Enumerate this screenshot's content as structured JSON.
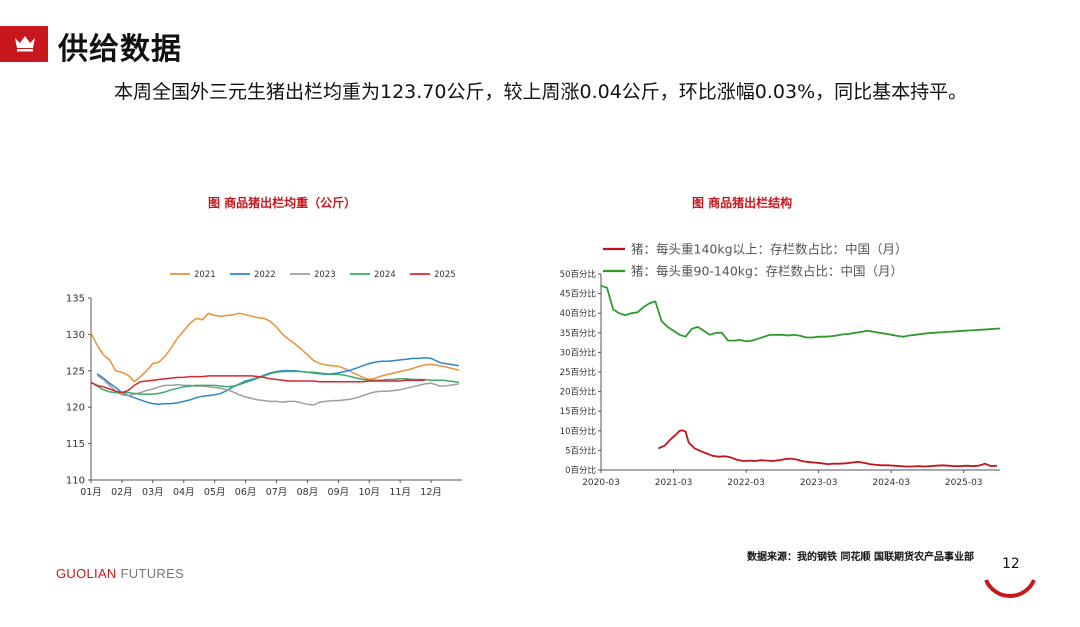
{
  "header": {
    "title": "供给数据",
    "summary": "本周全国外三元生猪出栏均重为123.70公斤，较上周涨0.04公斤，环比涨幅0.03%，同比基本持平。"
  },
  "footer": {
    "source": "数据来源：我的钢铁 同花顺 国联期货农产品事业部",
    "brand_main": "GUOLIAN",
    "brand_sub": "FUTURES",
    "page_number": "12"
  },
  "colors": {
    "accent": "#c8161d",
    "s2021": "#e8913a",
    "s2022": "#2e86c8",
    "s2023": "#9e9e9e",
    "s2024": "#3daa6a",
    "s2025": "#d9272e",
    "green": "#2e9a2e",
    "red": "#c0141c"
  },
  "chart_data": [
    {
      "type": "line",
      "title": "图 商品猪出栏均重（公斤）",
      "xlabel": "",
      "ylabel": "",
      "ylim": [
        110,
        135
      ],
      "yticks": [
        110,
        115,
        120,
        125,
        130,
        135
      ],
      "categories": [
        "01月",
        "02月",
        "03月",
        "04月",
        "05月",
        "06月",
        "07月",
        "08月",
        "09月",
        "10月",
        "11月",
        "12月"
      ],
      "legend_position": "top",
      "series": [
        {
          "name": "2021",
          "color": "#e8913a",
          "x": [
            1,
            1.2,
            1.4,
            1.6,
            1.8,
            2.0,
            2.2,
            2.4,
            2.6,
            2.8,
            3.0,
            3.2,
            3.4,
            3.6,
            3.8,
            4.0,
            4.2,
            4.4,
            4.6,
            4.8,
            5.0,
            5.2,
            5.4,
            5.6,
            5.8,
            6.0,
            6.2,
            6.4,
            6.6,
            6.8,
            7.0,
            7.2,
            7.4,
            7.6,
            7.8,
            8.0,
            8.2,
            8.4,
            8.6,
            8.8,
            9.0,
            9.2,
            9.4,
            9.6,
            9.8,
            10.0,
            10.2,
            10.4,
            10.6,
            10.8,
            11.0,
            11.2,
            11.4,
            11.6,
            11.8,
            12.0,
            12.4,
            12.9
          ],
          "values": [
            130.2,
            128.5,
            127.2,
            126.5,
            125.0,
            124.8,
            124.4,
            123.5,
            124.2,
            125.0,
            126.0,
            126.2,
            127.0,
            128.2,
            129.5,
            130.5,
            131.5,
            132.2,
            132.0,
            132.9,
            132.6,
            132.5,
            132.6,
            132.7,
            132.9,
            132.7,
            132.5,
            132.3,
            132.2,
            131.8,
            131.0,
            130.0,
            129.3,
            128.7,
            128.0,
            127.2,
            126.4,
            126.0,
            125.8,
            125.7,
            125.6,
            125.3,
            124.9,
            124.5,
            124.1,
            123.8,
            124.0,
            124.3,
            124.5,
            124.7,
            124.9,
            125.1,
            125.3,
            125.6,
            125.8,
            125.9,
            125.6,
            125.1
          ]
        },
        {
          "name": "2022",
          "color": "#2e86c8",
          "x": [
            1.2,
            1.4,
            1.6,
            1.8,
            2.0,
            2.2,
            2.4,
            2.6,
            2.8,
            3.0,
            3.2,
            3.4,
            3.6,
            3.8,
            4.0,
            4.2,
            4.4,
            4.6,
            4.8,
            5.0,
            5.2,
            5.4,
            5.6,
            5.8,
            6.0,
            6.2,
            6.4,
            6.6,
            6.8,
            7.0,
            7.2,
            7.4,
            7.6,
            7.8,
            8.0,
            8.2,
            8.4,
            8.6,
            8.8,
            9.0,
            9.2,
            9.4,
            9.6,
            9.8,
            10.0,
            10.2,
            10.4,
            10.6,
            10.8,
            11.0,
            11.2,
            11.4,
            11.6,
            11.8,
            12.0,
            12.3,
            12.6,
            12.9
          ],
          "values": [
            124.6,
            124.0,
            123.3,
            122.7,
            122.0,
            121.6,
            121.3,
            121.0,
            120.7,
            120.5,
            120.4,
            120.5,
            120.5,
            120.6,
            120.8,
            121.0,
            121.3,
            121.5,
            121.6,
            121.7,
            121.9,
            122.3,
            122.8,
            123.2,
            123.6,
            123.8,
            124.1,
            124.4,
            124.7,
            124.9,
            125.0,
            125.0,
            125.0,
            124.9,
            124.8,
            124.7,
            124.6,
            124.5,
            124.6,
            124.7,
            124.9,
            125.1,
            125.4,
            125.7,
            126.0,
            126.2,
            126.3,
            126.3,
            126.4,
            126.5,
            126.6,
            126.7,
            126.7,
            126.8,
            126.7,
            126.1,
            125.9,
            125.7
          ]
        },
        {
          "name": "2023",
          "color": "#9e9e9e",
          "x": [
            1.2,
            1.4,
            1.6,
            1.8,
            2.0,
            2.2,
            2.4,
            2.6,
            2.8,
            3.0,
            3.2,
            3.4,
            3.6,
            3.8,
            4.0,
            4.2,
            4.4,
            4.6,
            4.8,
            5.0,
            5.2,
            5.4,
            5.6,
            5.8,
            6.0,
            6.2,
            6.4,
            6.6,
            6.8,
            7.0,
            7.2,
            7.4,
            7.6,
            7.8,
            8.0,
            8.2,
            8.4,
            8.6,
            8.8,
            9.0,
            9.2,
            9.4,
            9.6,
            9.8,
            10.0,
            10.2,
            10.4,
            10.6,
            10.8,
            11.0,
            11.2,
            11.4,
            11.6,
            11.8,
            12.0,
            12.3,
            12.6,
            12.9
          ],
          "values": [
            124.4,
            123.8,
            123.0,
            122.2,
            121.7,
            121.6,
            121.8,
            122.0,
            122.3,
            122.5,
            122.8,
            123.0,
            123.0,
            123.1,
            123.0,
            123.0,
            122.9,
            122.9,
            122.8,
            122.7,
            122.6,
            122.4,
            122.1,
            121.7,
            121.4,
            121.2,
            121.0,
            120.9,
            120.8,
            120.8,
            120.7,
            120.8,
            120.8,
            120.6,
            120.4,
            120.3,
            120.7,
            120.8,
            120.9,
            120.9,
            121.0,
            121.1,
            121.3,
            121.6,
            121.9,
            122.1,
            122.2,
            122.2,
            122.3,
            122.4,
            122.6,
            122.8,
            123.0,
            123.2,
            123.3,
            122.9,
            123.0,
            123.2
          ]
        },
        {
          "name": "2024",
          "color": "#3daa6a",
          "x": [
            1,
            1.2,
            1.4,
            1.6,
            1.8,
            2.0,
            2.2,
            2.4,
            2.6,
            2.8,
            3.0,
            3.2,
            3.4,
            3.6,
            3.8,
            4.0,
            4.2,
            4.4,
            4.6,
            4.8,
            5.0,
            5.2,
            5.4,
            5.6,
            5.8,
            6.0,
            6.2,
            6.4,
            6.6,
            6.8,
            7.0,
            7.2,
            7.4,
            7.6,
            7.8,
            8.0,
            8.2,
            8.4,
            8.6,
            8.8,
            9.0,
            9.2,
            9.4,
            9.6,
            9.8,
            10.0,
            10.2,
            10.4,
            10.6,
            10.8,
            11.0,
            11.2,
            11.4,
            11.6,
            11.8,
            12.0,
            12.4,
            12.9
          ],
          "values": [
            123.4,
            122.9,
            122.4,
            122.1,
            122.0,
            122.0,
            122.0,
            121.9,
            121.8,
            121.8,
            121.8,
            121.9,
            122.1,
            122.4,
            122.6,
            122.8,
            122.9,
            123.0,
            123.0,
            123.0,
            123.0,
            122.9,
            122.8,
            122.9,
            123.1,
            123.4,
            123.7,
            124.0,
            124.3,
            124.6,
            124.8,
            124.9,
            124.9,
            124.9,
            124.9,
            124.8,
            124.8,
            124.7,
            124.6,
            124.5,
            124.5,
            124.4,
            124.2,
            124.0,
            123.8,
            123.7,
            123.7,
            123.7,
            123.8,
            123.8,
            123.9,
            123.9,
            123.8,
            123.8,
            123.8,
            123.7,
            123.7,
            123.4
          ]
        },
        {
          "name": "2025",
          "color": "#d9272e",
          "x": [
            1,
            1.2,
            1.4,
            1.6,
            1.8,
            2.0,
            2.2,
            2.4,
            2.6,
            2.8,
            3.0,
            3.2,
            3.4,
            3.6,
            3.8,
            4.0,
            4.2,
            4.4,
            4.6,
            4.8,
            5.0,
            5.2,
            5.4,
            5.6,
            5.8,
            6.0,
            6.2,
            6.4,
            6.6,
            6.8,
            7.0,
            7.2,
            7.4,
            7.6,
            7.8,
            8.0,
            8.2,
            8.4,
            8.6,
            8.8,
            9.0,
            9.2,
            9.4,
            9.6,
            9.8,
            10.0,
            10.2,
            10.4,
            10.6,
            10.8,
            11.0,
            11.2,
            11.4,
            11.6,
            11.8
          ],
          "values": [
            123.4,
            123.0,
            122.8,
            122.5,
            122.2,
            122.0,
            122.3,
            123.0,
            123.5,
            123.6,
            123.7,
            123.8,
            123.9,
            124.0,
            124.1,
            124.1,
            124.2,
            124.2,
            124.2,
            124.3,
            124.3,
            124.3,
            124.3,
            124.3,
            124.3,
            124.3,
            124.3,
            124.2,
            124.1,
            123.9,
            123.8,
            123.7,
            123.6,
            123.6,
            123.6,
            123.6,
            123.6,
            123.5,
            123.5,
            123.5,
            123.5,
            123.5,
            123.5,
            123.5,
            123.5,
            123.6,
            123.6,
            123.6,
            123.6,
            123.6,
            123.6,
            123.7,
            123.7,
            123.7,
            123.7
          ]
        }
      ]
    },
    {
      "type": "line",
      "title": "图 商品猪出栏结构",
      "xlabel": "",
      "ylabel": "",
      "ylim": [
        0,
        50
      ],
      "ytick_values": [
        0,
        5,
        10,
        15,
        20,
        25,
        30,
        35,
        40,
        45,
        50
      ],
      "ytick_suffix": "百分比",
      "xticks": [
        "2020-03",
        "2021-03",
        "2022-03",
        "2023-03",
        "2024-03",
        "2025-03"
      ],
      "x_month_range": [
        0,
        66
      ],
      "legend_position": "top-left",
      "series": [
        {
          "name": "猪：每头重140kg以上：存栏数占比：中国（月）",
          "color": "#c0141c",
          "x": [
            9.5,
            10.5,
            11.5,
            12.5,
            13,
            13.5,
            14,
            14.5,
            15.5,
            16.5,
            17.5,
            18.5,
            19.5,
            20.5,
            21.5,
            22.5,
            23.5,
            24.5,
            25.5,
            26.5,
            27.5,
            28.5,
            29.5,
            30.5,
            31.5,
            32.5,
            33.5,
            34.5,
            35.5,
            36.5,
            37.5,
            38.5,
            39.5,
            40.5,
            41.5,
            42.5,
            43.5,
            44.5,
            45.5,
            46.5,
            47.5,
            48.5,
            49.5,
            50.5,
            51.5,
            52.5,
            53.5,
            54.5,
            55.5,
            56.5,
            57.5,
            58.5,
            59.5,
            60.5,
            61.5,
            62.5,
            63.5,
            64.5,
            65.5
          ],
          "values": [
            5.5,
            6.2,
            7.8,
            9.2,
            10.0,
            10.1,
            9.8,
            7.0,
            5.5,
            4.8,
            4.2,
            3.6,
            3.4,
            3.5,
            3.2,
            2.6,
            2.3,
            2.4,
            2.3,
            2.5,
            2.4,
            2.3,
            2.5,
            2.8,
            2.9,
            2.6,
            2.2,
            2.0,
            1.9,
            1.7,
            1.5,
            1.6,
            1.6,
            1.7,
            1.9,
            2.1,
            1.8,
            1.5,
            1.3,
            1.2,
            1.2,
            1.1,
            1.0,
            0.9,
            0.9,
            1.0,
            0.9,
            1.0,
            1.1,
            1.2,
            1.1,
            1.0,
            1.0,
            1.1,
            1.0,
            1.1,
            1.6,
            1.0,
            1.1
          ]
        },
        {
          "name": "猪：每头重90-140kg：存栏数占比：中国（月）",
          "color": "#2e9a2e",
          "x": [
            0,
            1,
            2,
            3,
            4,
            5,
            6,
            7,
            8,
            9,
            10,
            11,
            12,
            13,
            14,
            15,
            16,
            17,
            18,
            19,
            20,
            21,
            22,
            23,
            24,
            25,
            26,
            27,
            28,
            29,
            30,
            31,
            32,
            33,
            34,
            35,
            36,
            37,
            38,
            39,
            40,
            41,
            42,
            43,
            44,
            45,
            46,
            47,
            48,
            49,
            50,
            51,
            52,
            53,
            54,
            55,
            56,
            57,
            58,
            59,
            60,
            61,
            62,
            63,
            64,
            65,
            66
          ],
          "values": [
            47.0,
            46.5,
            41.0,
            40.0,
            39.5,
            40.0,
            40.2,
            41.5,
            42.5,
            43.0,
            38.0,
            36.5,
            35.5,
            34.5,
            34.0,
            36.0,
            36.5,
            35.5,
            34.5,
            35.0,
            35.0,
            33.0,
            33.0,
            33.2,
            32.8,
            33.0,
            33.5,
            34.0,
            34.5,
            34.5,
            34.5,
            34.3,
            34.5,
            34.2,
            33.8,
            33.8,
            34.0,
            34.0,
            34.1,
            34.3,
            34.6,
            34.7,
            35.0,
            35.2,
            35.5,
            35.3,
            35.0,
            34.8,
            34.5,
            34.2,
            34.0,
            34.3,
            34.5,
            34.7,
            34.9,
            35.0,
            35.1,
            35.2,
            35.3,
            35.4,
            35.5,
            35.6,
            35.7,
            35.8,
            35.9,
            36.0,
            36.1
          ]
        }
      ]
    }
  ]
}
